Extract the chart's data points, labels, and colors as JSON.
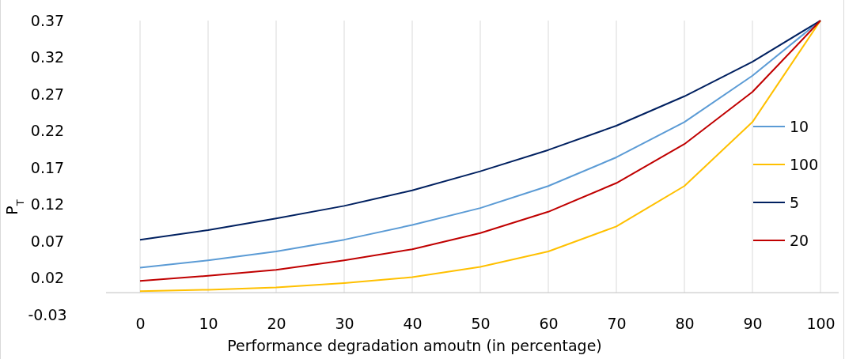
{
  "chart_data": {
    "type": "line",
    "xlabel": "Performance degradation amoutn (in percentage)",
    "ylabel": "P$_{T}$",
    "categories": [
      "0",
      "10",
      "20",
      "30",
      "40",
      "50",
      "60",
      "70",
      "80",
      "90",
      "100"
    ],
    "series": [
      {
        "name": "10",
        "color": "#5b9bd5",
        "values": [
          0.034,
          0.044,
          0.056,
          0.072,
          0.092,
          0.115,
          0.145,
          0.184,
          0.232,
          0.295,
          0.37
        ]
      },
      {
        "name": "100",
        "color": "#ffc000",
        "values": [
          0.002,
          0.004,
          0.007,
          0.013,
          0.021,
          0.035,
          0.056,
          0.09,
          0.145,
          0.232,
          0.37
        ]
      },
      {
        "name": "5",
        "color": "#002060",
        "values": [
          0.072,
          0.085,
          0.101,
          0.118,
          0.139,
          0.165,
          0.194,
          0.227,
          0.267,
          0.314,
          0.37
        ]
      },
      {
        "name": "20",
        "color": "#c00000",
        "values": [
          0.016,
          0.023,
          0.031,
          0.044,
          0.059,
          0.081,
          0.11,
          0.149,
          0.202,
          0.273,
          0.37
        ]
      }
    ],
    "ylim": [
      -0.03,
      0.37
    ],
    "yticks": [
      -0.03,
      0.02,
      0.07,
      0.12,
      0.17,
      0.22,
      0.27,
      0.32,
      0.37
    ],
    "grid": "x",
    "legend": "right",
    "marker": "none",
    "line_style": "solid"
  }
}
